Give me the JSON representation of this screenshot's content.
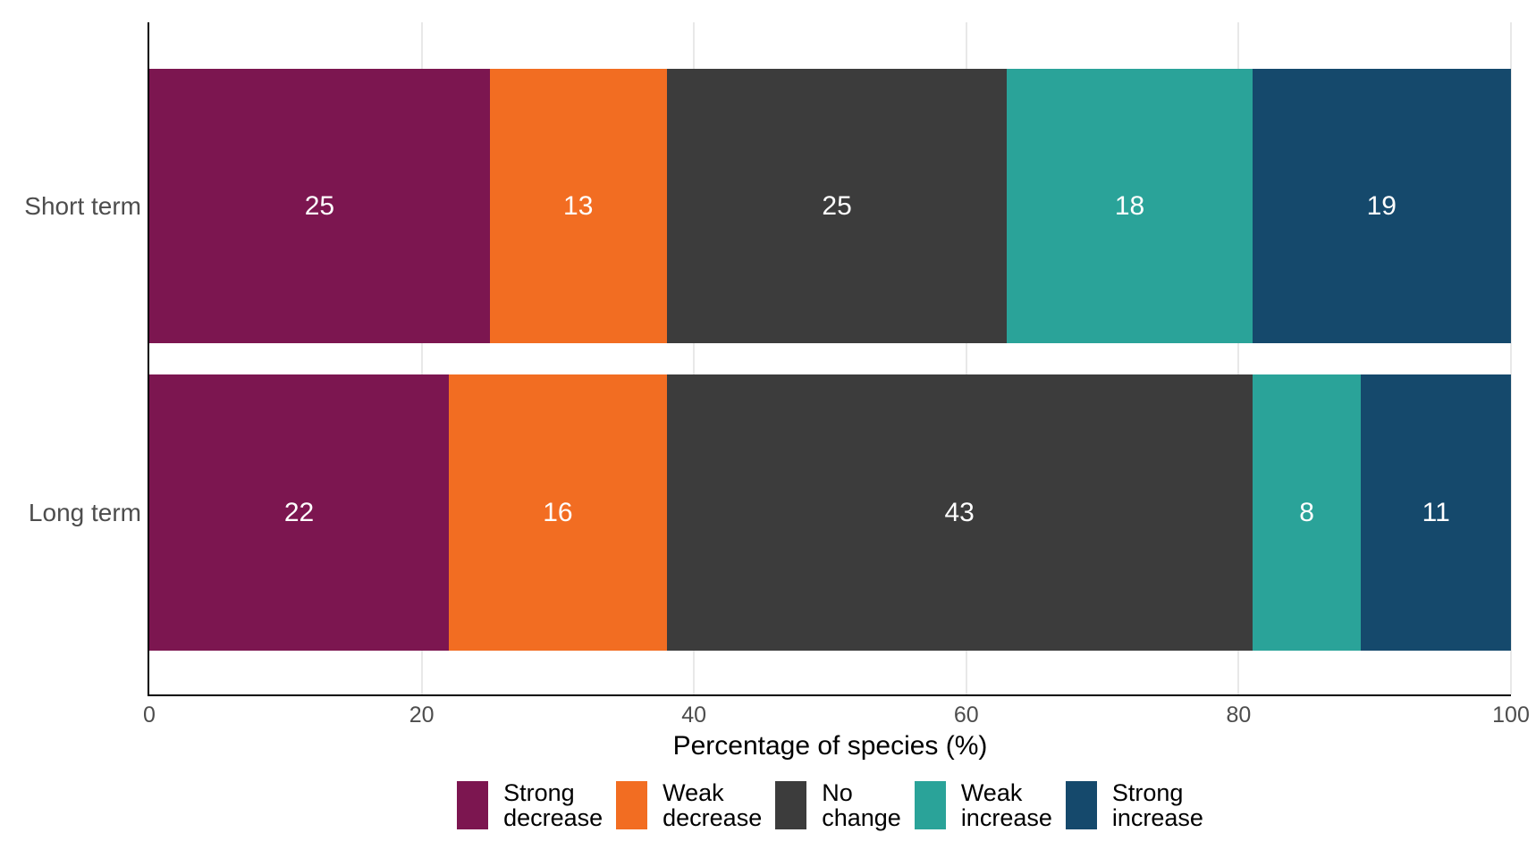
{
  "chart_data": {
    "type": "bar",
    "orientation": "horizontal",
    "stacked": true,
    "title": "",
    "xlabel": "Percentage of species (%)",
    "ylabel": "",
    "xlim": [
      0,
      100
    ],
    "xticks": [
      "0",
      "20",
      "40",
      "60",
      "80",
      "100"
    ],
    "grid": "major-vertical-light",
    "legend_position": "bottom-center",
    "categories": [
      "Short term",
      "Long term"
    ],
    "series": [
      {
        "name": "Strong decrease",
        "label_lines": [
          "Strong",
          "decrease"
        ],
        "color": "#7C1650",
        "values": [
          25,
          22
        ]
      },
      {
        "name": "Weak decrease",
        "label_lines": [
          "Weak",
          "decrease"
        ],
        "color": "#F26D22",
        "values": [
          13,
          16
        ]
      },
      {
        "name": "No change",
        "label_lines": [
          "No",
          "change"
        ],
        "color": "#3C3C3C",
        "values": [
          25,
          43
        ]
      },
      {
        "name": "Weak increase",
        "label_lines": [
          "Weak",
          "increase"
        ],
        "color": "#2AA399",
        "values": [
          18,
          8
        ]
      },
      {
        "name": "Strong increase",
        "label_lines": [
          "Strong",
          "increase"
        ],
        "color": "#15496C",
        "values": [
          19,
          11
        ]
      }
    ]
  },
  "styles": {
    "background": "#FFFFFF",
    "axis_line_color": "#000000",
    "grid_color": "#E8E8E8",
    "axis_text_color": "#4D4D4D",
    "value_label_color": "#FFFFFF",
    "legend_text_color": "#000000",
    "x_title_color": "#000000"
  }
}
